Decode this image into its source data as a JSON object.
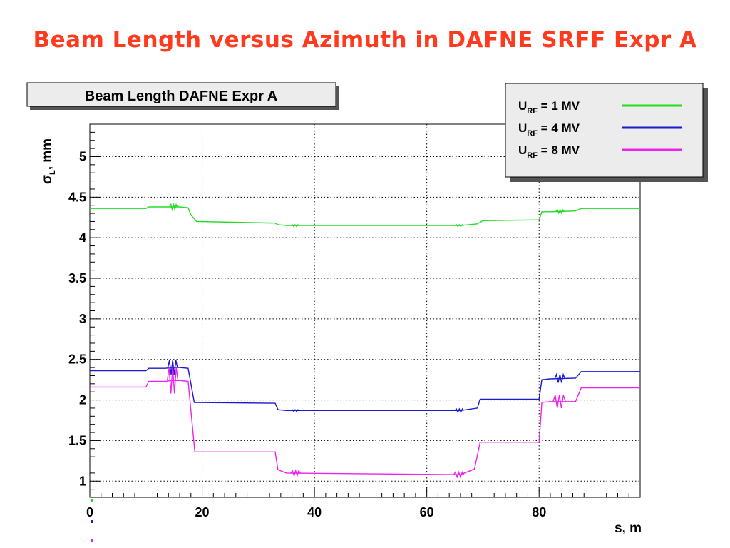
{
  "page": {
    "title": "Beam Length versus Azimuth in DAFNE SRFF Expr A"
  },
  "chart_data": {
    "type": "line",
    "title": "Beam Length DAFNE Expr A",
    "xlabel": "s, m",
    "ylabel": {
      "symbol": "σ",
      "subscript": "L",
      "suffix": ", mm"
    },
    "xlim": [
      0,
      98
    ],
    "ylim": [
      0.8,
      5.4
    ],
    "xticks": [
      "0",
      "20",
      "40",
      "60",
      "80"
    ],
    "yticks": [
      "1",
      "1.5",
      "2",
      "2.5",
      "3",
      "3.5",
      "4",
      "4.5",
      "5"
    ],
    "grid": true,
    "legend_position": "top-right",
    "series": [
      {
        "label_main": "U",
        "label_sub": "RF",
        "label_rest": " = 1 MV",
        "color": "#22dd22",
        "x": [
          0,
          10,
          10.5,
          13.5,
          14.5,
          16,
          17.5,
          18,
          19,
          33,
          33.5,
          35,
          66,
          69,
          70,
          80,
          80.5,
          82,
          86.5,
          87.5,
          98
        ],
        "y": [
          4.36,
          4.36,
          4.38,
          4.38,
          4.38,
          4.38,
          4.37,
          4.28,
          4.2,
          4.18,
          4.16,
          4.15,
          4.15,
          4.17,
          4.21,
          4.22,
          4.32,
          4.32,
          4.33,
          4.36,
          4.36
        ]
      },
      {
        "label_main": "U",
        "label_sub": "RF",
        "label_rest": " = 4 MV",
        "color": "#1a1ad2",
        "x": [
          0,
          10,
          10.5,
          13.5,
          14.5,
          16,
          17.5,
          18,
          18.6,
          33,
          33.5,
          35,
          66,
          69,
          69.5,
          80,
          80.5,
          82,
          86.5,
          87.5,
          98
        ],
        "y": [
          2.36,
          2.36,
          2.39,
          2.39,
          2.4,
          2.4,
          2.39,
          2.2,
          1.97,
          1.96,
          1.88,
          1.87,
          1.87,
          1.9,
          2.01,
          2.01,
          2.25,
          2.26,
          2.27,
          2.35,
          2.35
        ]
      },
      {
        "label_main": "U",
        "label_sub": "RF",
        "label_rest": " = 8 MV",
        "color": "#ee22ee",
        "x": [
          0,
          10,
          10.5,
          13.5,
          14.5,
          16,
          17.5,
          18.7,
          33,
          33.5,
          35,
          66,
          68.5,
          69.5,
          80,
          80.5,
          82,
          86.5,
          87.5,
          98
        ],
        "y": [
          2.16,
          2.16,
          2.23,
          2.23,
          2.24,
          2.24,
          2.23,
          1.36,
          1.36,
          1.14,
          1.1,
          1.08,
          1.15,
          1.48,
          1.48,
          1.97,
          1.98,
          1.98,
          2.15,
          2.15
        ]
      }
    ],
    "ripples": [
      {
        "series": 0,
        "x0": 14.2,
        "x1": 15.6,
        "amp": 0.03,
        "n": 3
      },
      {
        "series": 0,
        "x0": 35.8,
        "x1": 37.3,
        "amp": 0.01,
        "n": 3
      },
      {
        "series": 0,
        "x0": 65.0,
        "x1": 66.6,
        "amp": 0.01,
        "n": 3
      },
      {
        "series": 0,
        "x0": 83.0,
        "x1": 84.5,
        "amp": 0.02,
        "n": 3
      },
      {
        "series": 1,
        "x0": 13.9,
        "x1": 15.6,
        "amp": 0.09,
        "n": 3
      },
      {
        "series": 1,
        "x0": 35.8,
        "x1": 37.3,
        "amp": 0.01,
        "n": 3
      },
      {
        "series": 1,
        "x0": 65.0,
        "x1": 66.6,
        "amp": 0.02,
        "n": 3
      },
      {
        "series": 1,
        "x0": 82.8,
        "x1": 84.6,
        "amp": 0.05,
        "n": 3
      },
      {
        "series": 2,
        "x0": 13.8,
        "x1": 15.7,
        "amp": 0.16,
        "n": 3
      },
      {
        "series": 2,
        "x0": 35.8,
        "x1": 37.5,
        "amp": 0.03,
        "n": 3
      },
      {
        "series": 2,
        "x0": 64.8,
        "x1": 66.6,
        "amp": 0.03,
        "n": 3
      },
      {
        "series": 2,
        "x0": 82.5,
        "x1": 84.7,
        "amp": 0.08,
        "n": 3
      }
    ]
  }
}
